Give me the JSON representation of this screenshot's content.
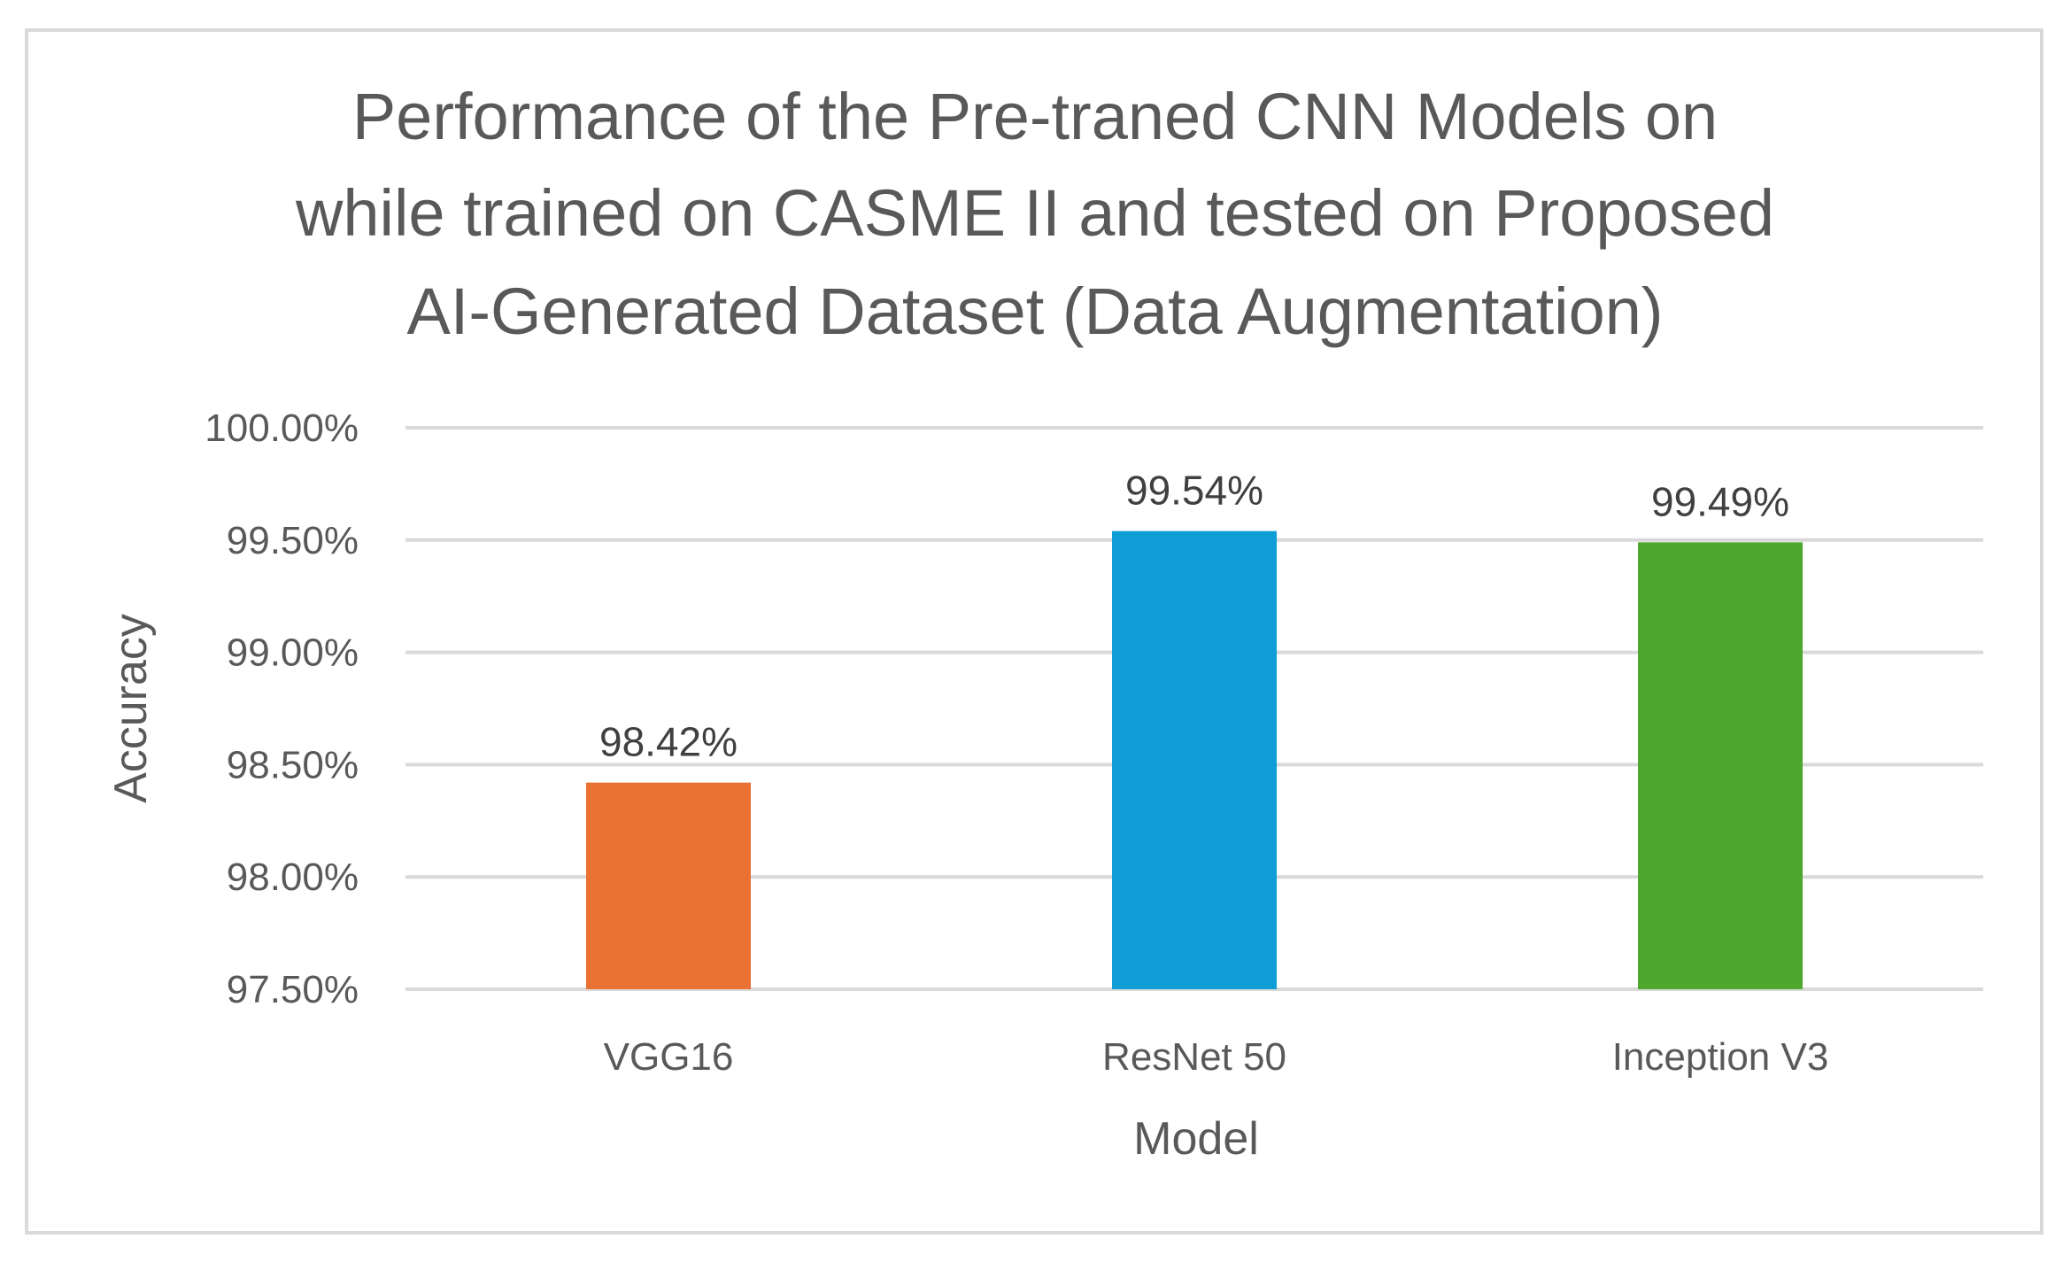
{
  "chart_data": {
    "type": "bar",
    "title_lines": [
      "Performance of the Pre-traned CNN Models on",
      "while trained on CASME II and tested on Proposed",
      "AI-Generated Dataset (Data Augmentation)"
    ],
    "categories": [
      "VGG16",
      "ResNet 50",
      "Inception V3"
    ],
    "values": [
      98.42,
      99.54,
      99.49
    ],
    "data_labels": [
      "98.42%",
      "99.54%",
      "99.49%"
    ],
    "colors": [
      "#e97132",
      "#0f9ed5",
      "#4ea72e"
    ],
    "xlabel": "Model",
    "ylabel": "Accuracy",
    "ylim": [
      97.5,
      100.0
    ],
    "yticks": [
      97.5,
      98.0,
      98.5,
      99.0,
      99.5,
      100.0
    ],
    "ytick_labels": [
      "97.50%",
      "98.00%",
      "98.50%",
      "99.00%",
      "99.50%",
      "100.00%"
    ],
    "grid": true,
    "legend": "none"
  }
}
